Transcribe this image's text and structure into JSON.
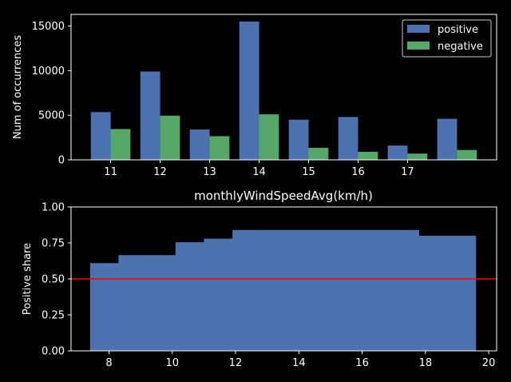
{
  "chart_data": [
    {
      "type": "bar",
      "title": "",
      "xlabel": "",
      "ylabel": "Num of occurrences",
      "categories": [
        "11",
        "12",
        "13",
        "14",
        "15",
        "16",
        "17"
      ],
      "bars": [
        {
          "x": 10.5,
          "positive": 5350,
          "negative": 3450
        },
        {
          "x": 11.0,
          "positive": 9900,
          "negative": 4950
        },
        {
          "x": 11.5,
          "positive": 3400,
          "negative": 2650
        },
        {
          "x": 12.0,
          "positive": 15500,
          "negative": 5100
        },
        {
          "x": 12.5,
          "positive": 4500,
          "negative": 1350
        },
        {
          "x": 13.0,
          "positive": 4800,
          "negative": 900
        },
        {
          "x": 13.5,
          "positive": 1600,
          "negative": 700
        },
        {
          "x": 14.0,
          "positive": 4600,
          "negative": 1100
        }
      ],
      "series": [
        {
          "name": "positive",
          "color": "#4c72b0"
        },
        {
          "name": "negative",
          "color": "#55a868"
        }
      ],
      "yticks": [
        "0",
        "5000",
        "10000",
        "15000"
      ],
      "ylim": [
        0,
        16300
      ],
      "legend": "top-right"
    },
    {
      "type": "area",
      "title": "monthlyWindSpeedAvg(km/h)",
      "xlabel": "",
      "ylabel": "Positive share",
      "steps": [
        {
          "x0": 7.4,
          "x1": 8.3,
          "y": 0.61
        },
        {
          "x0": 8.3,
          "x1": 10.1,
          "y": 0.665
        },
        {
          "x0": 10.1,
          "x1": 11.0,
          "y": 0.755
        },
        {
          "x0": 11.0,
          "x1": 11.9,
          "y": 0.78
        },
        {
          "x0": 11.9,
          "x1": 17.8,
          "y": 0.84
        },
        {
          "x0": 17.8,
          "x1": 19.6,
          "y": 0.8
        }
      ],
      "reference_line": 0.5,
      "reference_color": "#ff0000",
      "fill_color": "#4c72b0",
      "xticks": [
        "8",
        "10",
        "12",
        "14",
        "16",
        "18",
        "20"
      ],
      "yticks": [
        "0.00",
        "0.25",
        "0.50",
        "0.75",
        "1.00"
      ],
      "xlim": [
        6.8,
        20.25
      ],
      "ylim": [
        0,
        1
      ]
    }
  ]
}
